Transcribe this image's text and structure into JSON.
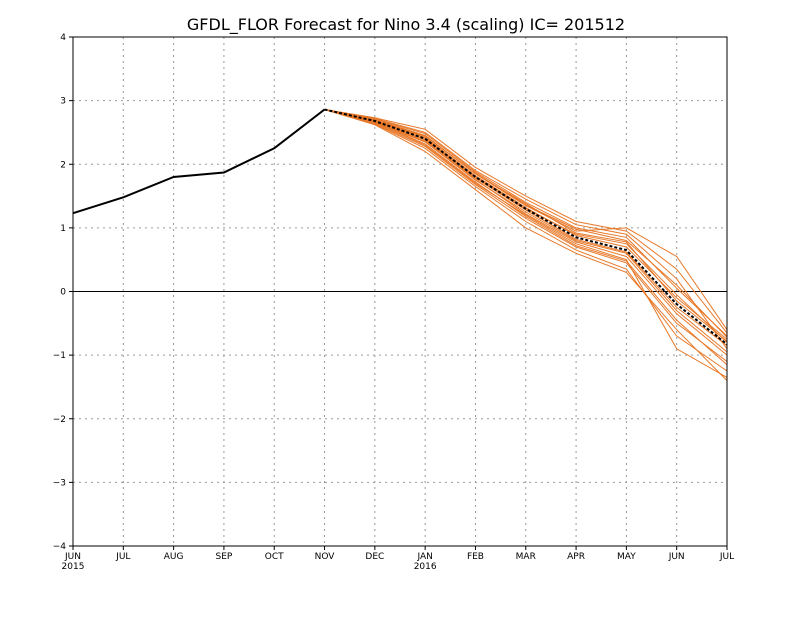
{
  "chart_data": {
    "type": "line",
    "title": "GFDL_FLOR Forecast for Nino 3.4 (scaling) IC= 201512",
    "xlabel": "",
    "ylabel": "",
    "x_ticks": [
      "JUN",
      "JUL",
      "AUG",
      "SEP",
      "OCT",
      "NOV",
      "DEC",
      "JAN",
      "FEB",
      "MAR",
      "APR",
      "MAY",
      "JUN",
      "JUL"
    ],
    "x_year_labels": [
      {
        "month_index": 0,
        "label": "2015"
      },
      {
        "month_index": 7,
        "label": "2016"
      }
    ],
    "y_ticks": [
      -4,
      -3,
      -2,
      -1,
      0,
      1,
      2,
      3,
      4
    ],
    "ylim": [
      -4,
      4
    ],
    "xlim": [
      0,
      13
    ],
    "grid": true,
    "zero_line": true,
    "colors": {
      "observed": "#000000",
      "ensemble": "#e8792a",
      "mean": "#000000",
      "grid": "#999999"
    },
    "observed": {
      "x": [
        0,
        1,
        2,
        3,
        4,
        5
      ],
      "values": [
        1.23,
        1.48,
        1.8,
        1.87,
        2.25,
        2.86
      ]
    },
    "ensemble_mean": {
      "x": [
        5,
        6,
        7,
        8,
        9,
        10,
        11,
        12,
        13
      ],
      "values": [
        2.86,
        2.68,
        2.4,
        1.8,
        1.3,
        0.85,
        0.65,
        -0.2,
        -0.83
      ]
    },
    "ensemble_members": [
      {
        "x": [
          5,
          6,
          7,
          8,
          9,
          10,
          11,
          12,
          13
        ],
        "values": [
          2.86,
          2.7,
          2.45,
          1.85,
          1.35,
          0.95,
          1.0,
          0.55,
          -0.6
        ]
      },
      {
        "x": [
          5,
          6,
          7,
          8,
          9,
          10,
          11,
          12,
          13
        ],
        "values": [
          2.86,
          2.66,
          2.3,
          1.7,
          1.2,
          0.75,
          0.5,
          -0.9,
          -1.35
        ]
      },
      {
        "x": [
          5,
          6,
          7,
          8,
          9,
          10,
          11,
          12,
          13
        ],
        "values": [
          2.86,
          2.72,
          2.5,
          1.9,
          1.45,
          1.05,
          0.9,
          0.2,
          -0.9
        ]
      },
      {
        "x": [
          5,
          6,
          7,
          8,
          9,
          10,
          11,
          12,
          13
        ],
        "values": [
          2.86,
          2.65,
          2.35,
          1.75,
          1.25,
          0.8,
          0.6,
          -0.3,
          -0.95
        ]
      },
      {
        "x": [
          5,
          6,
          7,
          8,
          9,
          10,
          11,
          12,
          13
        ],
        "values": [
          2.86,
          2.69,
          2.42,
          1.82,
          1.32,
          0.88,
          0.7,
          -0.1,
          -0.75
        ]
      },
      {
        "x": [
          5,
          6,
          7,
          8,
          9,
          10,
          11,
          12,
          13
        ],
        "values": [
          2.86,
          2.64,
          2.28,
          1.68,
          1.15,
          0.7,
          0.45,
          -0.5,
          -1.1
        ]
      },
      {
        "x": [
          5,
          6,
          7,
          8,
          9,
          10,
          11,
          12,
          13
        ],
        "values": [
          2.86,
          2.71,
          2.48,
          1.88,
          1.4,
          1.0,
          0.85,
          0.05,
          -0.7
        ]
      },
      {
        "x": [
          5,
          6,
          7,
          8,
          9,
          10,
          11,
          12,
          13
        ],
        "values": [
          2.86,
          2.67,
          2.38,
          1.78,
          1.28,
          0.82,
          0.62,
          -0.25,
          -0.85
        ]
      },
      {
        "x": [
          5,
          6,
          7,
          8,
          9,
          10,
          11,
          12,
          13
        ],
        "values": [
          2.86,
          2.63,
          2.25,
          1.65,
          1.1,
          0.65,
          0.35,
          -0.7,
          -1.25
        ]
      },
      {
        "x": [
          5,
          6,
          7,
          8,
          9,
          10,
          11,
          12,
          13
        ],
        "values": [
          2.86,
          2.73,
          2.55,
          1.95,
          1.5,
          1.1,
          0.95,
          0.35,
          -0.65
        ]
      },
      {
        "x": [
          5,
          6,
          7,
          8,
          9,
          10,
          11,
          12,
          13
        ],
        "values": [
          2.86,
          2.68,
          2.4,
          1.8,
          1.3,
          0.9,
          0.75,
          -0.05,
          -0.8
        ]
      },
      {
        "x": [
          5,
          6,
          7,
          8,
          9,
          10,
          11,
          12,
          13
        ],
        "values": [
          2.86,
          2.62,
          2.2,
          1.6,
          1.0,
          0.6,
          0.3,
          -0.6,
          -1.4
        ]
      },
      {
        "x": [
          5,
          6,
          7,
          8,
          9,
          10,
          11,
          12,
          13
        ],
        "values": [
          2.86,
          2.7,
          2.45,
          1.85,
          1.38,
          0.92,
          0.78,
          -0.15,
          -0.78
        ]
      },
      {
        "x": [
          5,
          6,
          7,
          8,
          9,
          10,
          11,
          12,
          13
        ],
        "values": [
          2.86,
          2.66,
          2.36,
          1.76,
          1.22,
          0.78,
          0.55,
          -0.35,
          -1.0
        ]
      },
      {
        "x": [
          5,
          6,
          7,
          8,
          9,
          10,
          11,
          12,
          13
        ],
        "values": [
          2.86,
          2.69,
          2.44,
          1.86,
          1.36,
          0.98,
          0.8,
          0.1,
          -0.72
        ]
      },
      {
        "x": [
          5,
          6,
          7,
          8,
          9,
          10,
          11,
          12,
          13
        ],
        "values": [
          2.86,
          2.65,
          2.32,
          1.72,
          1.18,
          0.72,
          0.48,
          -0.45,
          -1.15
        ]
      }
    ]
  }
}
